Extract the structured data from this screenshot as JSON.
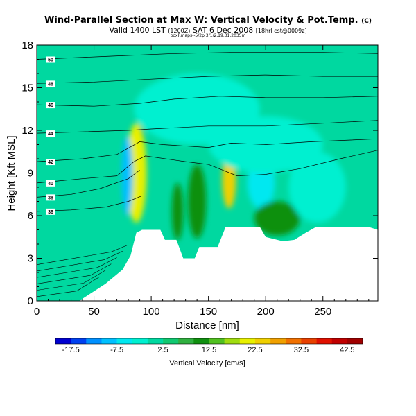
{
  "title": {
    "main": "Wind-Parallel Section at Max W: Vertical Velocity & Pot.Temp.",
    "tag": "(C)",
    "valid_prefix": "Valid 1400 LST",
    "valid_utc": "(1200Z)",
    "valid_date": "SAT 6 Dec 2008",
    "run": "[18hrl cst@0009z]",
    "credit": "boxRmaps--5/2p 3/1/2,19.31.2035m"
  },
  "chart_data": {
    "type": "heatmap",
    "xlabel": "Distance [nm]",
    "ylabel": "Height [Kft MSL]",
    "xlim": [
      0,
      298
    ],
    "ylim": [
      0,
      18
    ],
    "xticks": [
      0,
      50,
      100,
      150,
      200,
      250
    ],
    "yticks": [
      0,
      3,
      6,
      9,
      12,
      15,
      18
    ],
    "terrain": [
      [
        0,
        0
      ],
      [
        37,
        0
      ],
      [
        60,
        1.2
      ],
      [
        75,
        2.2
      ],
      [
        82,
        3.2
      ],
      [
        87,
        4.8
      ],
      [
        92,
        5.0
      ],
      [
        108,
        5.0
      ],
      [
        112,
        4.3
      ],
      [
        122,
        4.3
      ],
      [
        128,
        3.0
      ],
      [
        138,
        3.0
      ],
      [
        142,
        3.8
      ],
      [
        158,
        3.8
      ],
      [
        165,
        5.2
      ],
      [
        195,
        5.2
      ],
      [
        200,
        4.5
      ],
      [
        215,
        4.2
      ],
      [
        225,
        4.3
      ],
      [
        235,
        4.8
      ],
      [
        244,
        5.2
      ],
      [
        290,
        5.2
      ],
      [
        298,
        5.0
      ]
    ],
    "theta_contours": [
      {
        "label": "36",
        "pts": [
          [
            0,
            6.3
          ],
          [
            30,
            6.4
          ],
          [
            60,
            6.6
          ],
          [
            80,
            7.0
          ],
          [
            92,
            7.4
          ]
        ]
      },
      {
        "label": "38",
        "pts": [
          [
            0,
            7.3
          ],
          [
            30,
            7.5
          ],
          [
            55,
            7.9
          ],
          [
            80,
            8.6
          ],
          [
            90,
            9.2
          ]
        ]
      },
      {
        "label": "40",
        "pts": [
          [
            0,
            8.3
          ],
          [
            40,
            8.6
          ],
          [
            70,
            8.8
          ],
          [
            85,
            9.8
          ],
          [
            95,
            10.2
          ],
          [
            130,
            9.8
          ],
          [
            150,
            9.6
          ],
          [
            175,
            8.8
          ],
          [
            200,
            8.9
          ],
          [
            230,
            9.3
          ],
          [
            265,
            10.0
          ],
          [
            298,
            10.6
          ]
        ]
      },
      {
        "label": "42",
        "pts": [
          [
            0,
            9.8
          ],
          [
            40,
            10.0
          ],
          [
            70,
            10.3
          ],
          [
            90,
            11.2
          ],
          [
            110,
            11.0
          ],
          [
            150,
            10.8
          ],
          [
            170,
            11.1
          ],
          [
            200,
            11.0
          ],
          [
            240,
            11.2
          ],
          [
            298,
            11.4
          ]
        ]
      },
      {
        "label": "44",
        "pts": [
          [
            0,
            11.8
          ],
          [
            40,
            11.9
          ],
          [
            80,
            12.0
          ],
          [
            100,
            12.1
          ],
          [
            150,
            12.3
          ],
          [
            200,
            12.3
          ],
          [
            250,
            12.5
          ],
          [
            298,
            12.7
          ]
        ]
      },
      {
        "label": "46",
        "pts": [
          [
            0,
            13.8
          ],
          [
            50,
            13.7
          ],
          [
            90,
            13.9
          ],
          [
            120,
            14.2
          ],
          [
            160,
            14.4
          ],
          [
            200,
            14.3
          ],
          [
            250,
            14.3
          ],
          [
            298,
            14.4
          ]
        ]
      },
      {
        "label": "48",
        "pts": [
          [
            0,
            15.3
          ],
          [
            50,
            15.4
          ],
          [
            100,
            15.6
          ],
          [
            150,
            15.8
          ],
          [
            200,
            15.9
          ],
          [
            250,
            15.8
          ],
          [
            298,
            15.8
          ]
        ]
      },
      {
        "label": "50",
        "pts": [
          [
            0,
            17.0
          ],
          [
            60,
            17.2
          ],
          [
            120,
            17.4
          ],
          [
            180,
            17.5
          ],
          [
            240,
            17.5
          ],
          [
            298,
            17.4
          ]
        ]
      }
    ],
    "velocity_features": [
      {
        "x": 90,
        "y": 9.3,
        "rx": 5,
        "ry": 3.0,
        "w": 45
      },
      {
        "x": 87,
        "y": 9.0,
        "rx": 9,
        "ry": 3.5,
        "w": 20
      },
      {
        "x": 79,
        "y": 8.8,
        "rx": 5,
        "ry": 2.8,
        "w": -12
      },
      {
        "x": 168,
        "y": 8.5,
        "rx": 6,
        "ry": 2.0,
        "w": 24
      },
      {
        "x": 196,
        "y": 8.3,
        "rx": 12,
        "ry": 1.8,
        "w": -8
      },
      {
        "x": 140,
        "y": 7.0,
        "rx": 8,
        "ry": 2.6,
        "w": 12
      },
      {
        "x": 123,
        "y": 6.3,
        "rx": 5,
        "ry": 2.0,
        "w": 12
      },
      {
        "x": 210,
        "y": 5.8,
        "rx": 20,
        "ry": 1.2,
        "w": 10
      },
      {
        "x": 245,
        "y": 8.0,
        "rx": 25,
        "ry": 2.5,
        "w": -4
      },
      {
        "x": 140,
        "y": 13.5,
        "rx": 55,
        "ry": 2.5,
        "w": -4
      },
      {
        "x": 200,
        "y": 11.0,
        "rx": 50,
        "ry": 2.0,
        "w": -5
      }
    ],
    "colorbar": {
      "label": "Vertical Velocity [cm/s]",
      "ticks": [
        "-17.5",
        "-7.5",
        "2.5",
        "12.5",
        "22.5",
        "32.5",
        "42.5"
      ],
      "colors": [
        "#0000d0",
        "#0040f0",
        "#0090ff",
        "#00c0ff",
        "#00e8f0",
        "#00f0d0",
        "#00d8a0",
        "#10c870",
        "#30b040",
        "#109010",
        "#50c020",
        "#a0dc10",
        "#e8f000",
        "#f0d000",
        "#f0a000",
        "#f07000",
        "#e84000",
        "#e01000",
        "#c00000",
        "#a00000"
      ]
    }
  }
}
